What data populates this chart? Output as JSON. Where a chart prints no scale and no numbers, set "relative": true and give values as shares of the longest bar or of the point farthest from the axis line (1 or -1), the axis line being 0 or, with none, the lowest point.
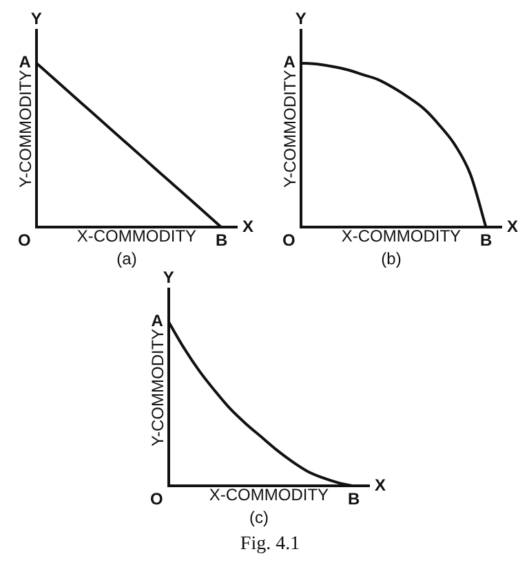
{
  "chart_data": [
    {
      "type": "line",
      "title": "(a)",
      "xlabel": "X-COMMODITY",
      "ylabel": "Y-COMMODITY",
      "relative": true,
      "grid": false,
      "legend": false,
      "marker": "none",
      "line_style": "solid",
      "categories": [
        null,
        null,
        null,
        null,
        null,
        null,
        null,
        null,
        null,
        null,
        null,
        null,
        null,
        null
      ],
      "series": [
        {
          "color": "#111111",
          "values": [
            1,
            0.917,
            0.833,
            0.75,
            0.667,
            0.583,
            0.5,
            0.417,
            0.333,
            0.25,
            0.167,
            0.083,
            0,
            null
          ]
        }
      ],
      "annotations": [
        "O",
        "A",
        "B",
        "Y",
        "X"
      ]
    },
    {
      "type": "line",
      "title": "(b)",
      "xlabel": "X-COMMODITY",
      "ylabel": "Y-COMMODITY",
      "relative": true,
      "grid": false,
      "legend": false,
      "marker": "none",
      "line_style": "solid",
      "categories": [
        null,
        null,
        null,
        null,
        null,
        null,
        null,
        null,
        null,
        null,
        null,
        null,
        null,
        null
      ],
      "series": [
        {
          "color": "#111111",
          "values": [
            1,
            0.995,
            0.98,
            0.96,
            0.93,
            0.9,
            0.85,
            0.79,
            0.72,
            0.62,
            0.5,
            0.32,
            0,
            null
          ]
        }
      ],
      "annotations": [
        "O",
        "A",
        "B",
        "Y",
        "X"
      ]
    },
    {
      "type": "line",
      "title": "(c)",
      "xlabel": "X-COMMODITY",
      "ylabel": "Y-COMMODITY",
      "relative": true,
      "grid": false,
      "legend": false,
      "marker": "none",
      "line_style": "solid",
      "categories": [
        null,
        null,
        null,
        null,
        null,
        null,
        null,
        null,
        null,
        null,
        null,
        null,
        null,
        null
      ],
      "series": [
        {
          "color": "#111111",
          "values": [
            1,
            0.84,
            0.7,
            0.58,
            0.47,
            0.38,
            0.3,
            0.22,
            0.15,
            0.09,
            0.05,
            0.02,
            0,
            null
          ]
        }
      ],
      "annotations": [
        "O",
        "A",
        "B",
        "Y",
        "X",
        "Fig. 4.1"
      ]
    }
  ]
}
